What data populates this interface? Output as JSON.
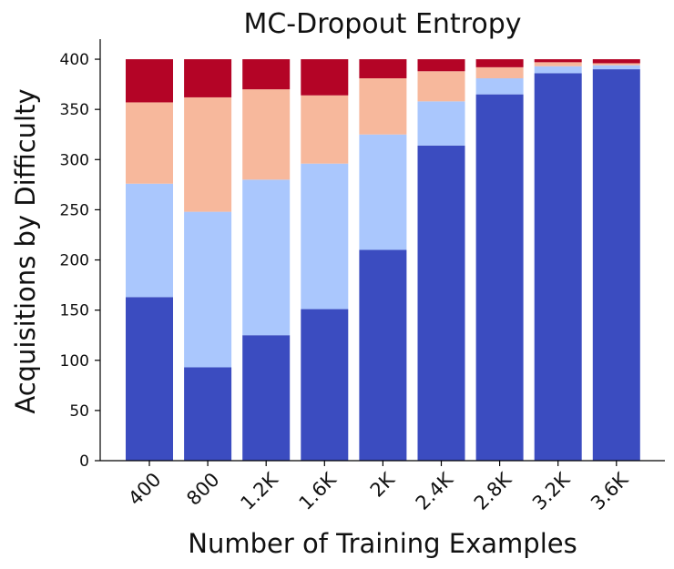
{
  "chart_data": {
    "type": "bar",
    "stacked": true,
    "title": "MC-Dropout Entropy",
    "xlabel": "Number of Training Examples",
    "ylabel": "Acquisitions by Difficulty",
    "categories": [
      "400",
      "800",
      "1.2K",
      "1.6K",
      "2K",
      "2.4K",
      "2.8K",
      "3.2K",
      "3.6K"
    ],
    "ylim": [
      0,
      420
    ],
    "yticks": [
      0,
      50,
      100,
      150,
      200,
      250,
      300,
      350,
      400
    ],
    "grid": false,
    "series": [
      {
        "color": "#3b4cc0",
        "values": [
          163,
          93,
          125,
          151,
          210,
          314,
          365,
          386,
          390
        ]
      },
      {
        "color": "#aac7fd",
        "values": [
          113,
          155,
          155,
          145,
          115,
          44,
          16,
          7,
          4
        ]
      },
      {
        "color": "#f7b89c",
        "values": [
          81,
          114,
          90,
          68,
          56,
          30,
          11,
          4,
          2
        ]
      },
      {
        "color": "#b40426",
        "values": [
          43,
          38,
          30,
          36,
          19,
          12,
          8,
          3,
          4
        ]
      }
    ]
  }
}
